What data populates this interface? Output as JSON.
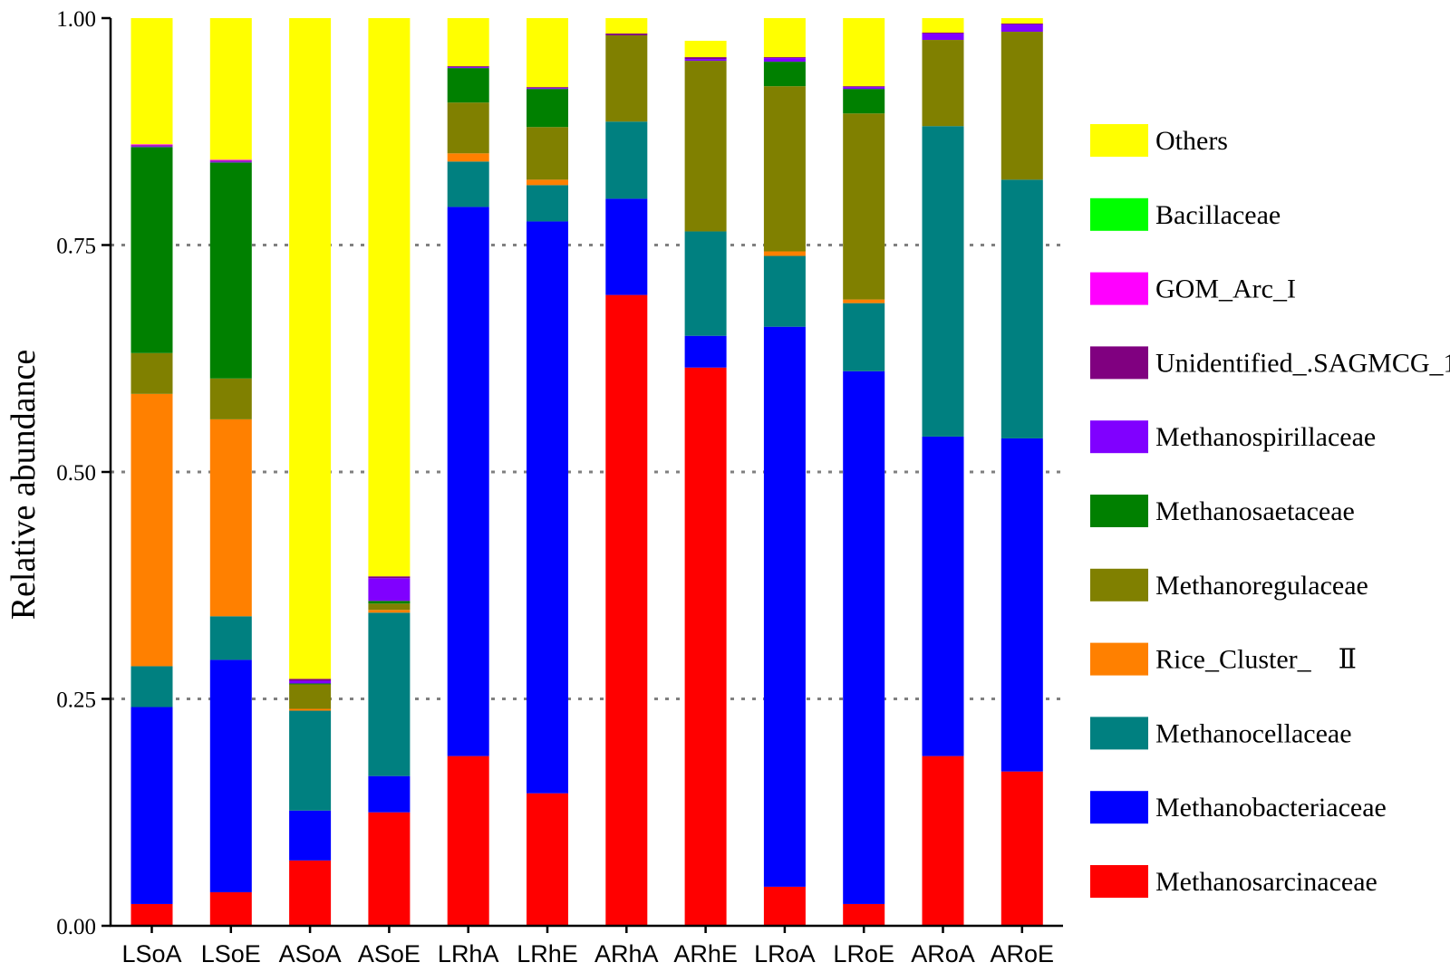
{
  "chart_data": {
    "type": "bar",
    "stacked": true,
    "ylabel": "Relative abundance",
    "xlabel": "",
    "ylim": [
      0,
      1
    ],
    "yticks": [
      "0.00",
      "0.25",
      "0.50",
      "0.75",
      "1.00"
    ],
    "gridlines": [
      0.25,
      0.5,
      0.75
    ],
    "legend_position": "right",
    "categories": [
      "LSoA",
      "LSoE",
      "ASoA",
      "ASoE",
      "LRhA",
      "LRhE",
      "ARhA",
      "ARhE",
      "LRoA",
      "LRoE",
      "ARoA",
      "ARoE"
    ],
    "series": [
      {
        "name": "Methanosarcinaceae",
        "color": "#ff0000",
        "values": [
          0.024,
          0.037,
          0.072,
          0.125,
          0.187,
          0.146,
          0.695,
          0.615,
          0.043,
          0.024,
          0.187,
          0.17
        ]
      },
      {
        "name": "Methanobacteriaceae",
        "color": "#0000ff",
        "values": [
          0.217,
          0.256,
          0.055,
          0.04,
          0.605,
          0.63,
          0.106,
          0.035,
          0.617,
          0.587,
          0.352,
          0.367
        ]
      },
      {
        "name": "Methanocellaceae",
        "color": "#008080",
        "values": [
          0.045,
          0.048,
          0.11,
          0.18,
          0.05,
          0.04,
          0.085,
          0.115,
          0.078,
          0.075,
          0.342,
          0.285
        ]
      },
      {
        "name": "Rice_Cluster_    Ⅱ",
        "color": "#ff8000",
        "values": [
          0.3,
          0.217,
          0.002,
          0.003,
          0.009,
          0.006,
          0.0,
          0.0,
          0.005,
          0.004,
          0.0,
          0.0
        ]
      },
      {
        "name": "Methanoregulaceae",
        "color": "#808000",
        "values": [
          0.045,
          0.045,
          0.027,
          0.007,
          0.056,
          0.058,
          0.095,
          0.188,
          0.182,
          0.205,
          0.095,
          0.163
        ]
      },
      {
        "name": "Methanosaetaceae",
        "color": "#008000",
        "values": [
          0.227,
          0.238,
          0.001,
          0.003,
          0.038,
          0.042,
          0.0,
          0.0,
          0.027,
          0.027,
          0.0,
          0.0
        ]
      },
      {
        "name": "Methanospirillaceae",
        "color": "#8000ff",
        "values": [
          0.001,
          0.001,
          0.003,
          0.025,
          0.001,
          0.001,
          0.0,
          0.002,
          0.004,
          0.002,
          0.007,
          0.008
        ]
      },
      {
        "name": "Unidentified_.SAGMCG_1.",
        "color": "#800080",
        "values": [
          0.001,
          0.001,
          0.002,
          0.002,
          0.001,
          0.001,
          0.002,
          0.002,
          0.001,
          0.001,
          0.001,
          0.001
        ]
      },
      {
        "name": "GOM_Arc_I",
        "color": "#ff00ff",
        "values": [
          0.001,
          0.001,
          0.0,
          0.0,
          0.0,
          0.0,
          0.0,
          0.0,
          0.0,
          0.0,
          0.0,
          0.0
        ]
      },
      {
        "name": "Bacillaceae",
        "color": "#00ff00",
        "values": [
          0.0,
          0.0,
          0.0,
          0.0,
          0.0,
          0.0,
          0.0,
          0.0,
          0.0,
          0.0,
          0.0,
          0.0
        ]
      },
      {
        "name": "Others",
        "color": "#ffff00",
        "values": [
          0.139,
          0.156,
          0.728,
          0.615,
          0.053,
          0.076,
          0.017,
          0.018,
          0.043,
          0.077,
          0.019,
          0.01
        ]
      }
    ],
    "legend_order": [
      "Others",
      "Bacillaceae",
      "GOM_Arc_I",
      "Unidentified_.SAGMCG_1.",
      "Methanospirillaceae",
      "Methanosaetaceae",
      "Methanoregulaceae",
      "Rice_Cluster_    Ⅱ",
      "Methanocellaceae",
      "Methanobacteriaceae",
      "Methanosarcinaceae"
    ]
  }
}
